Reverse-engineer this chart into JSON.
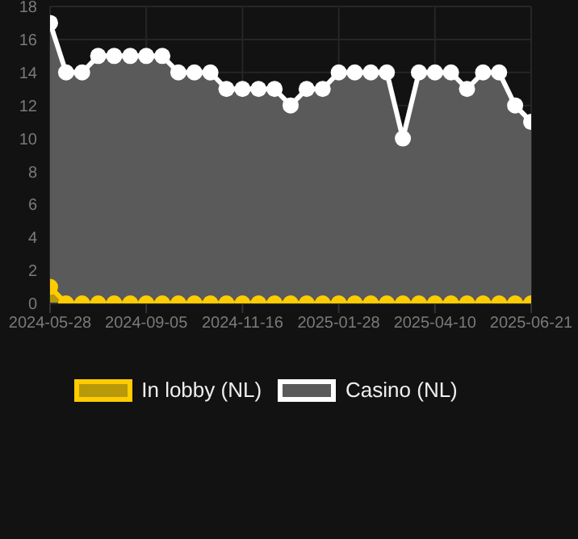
{
  "chart_data": {
    "type": "area",
    "categories": [
      "2024-05-28",
      null,
      null,
      null,
      null,
      null,
      "2024-09-05",
      null,
      null,
      null,
      null,
      null,
      "2024-11-16",
      null,
      null,
      null,
      null,
      null,
      "2025-01-28",
      null,
      null,
      null,
      null,
      null,
      "2025-04-10",
      null,
      null,
      null,
      null,
      null,
      "2025-06-21"
    ],
    "series": [
      {
        "name": "In lobby (NL)",
        "color": "#ffcc00",
        "values": [
          1,
          0,
          0,
          0,
          0,
          0,
          0,
          0,
          0,
          0,
          0,
          0,
          0,
          0,
          0,
          0,
          0,
          0,
          0,
          0,
          0,
          0,
          0,
          0,
          0,
          0,
          0,
          0,
          0,
          0,
          0
        ]
      },
      {
        "name": "Casino (NL)",
        "color": "#ffffff",
        "values": [
          17,
          14,
          14,
          15,
          15,
          15,
          15,
          15,
          14,
          14,
          14,
          13,
          13,
          13,
          13,
          12,
          13,
          13,
          14,
          14,
          14,
          14,
          10,
          14,
          14,
          14,
          13,
          14,
          14,
          12,
          11
        ]
      }
    ],
    "ylim": [
      0,
      18
    ],
    "yticks": [
      0,
      2,
      4,
      6,
      8,
      10,
      12,
      14,
      16,
      18
    ],
    "grid": true,
    "legend": "bottom",
    "marker": "circle",
    "line_style": "solid"
  }
}
